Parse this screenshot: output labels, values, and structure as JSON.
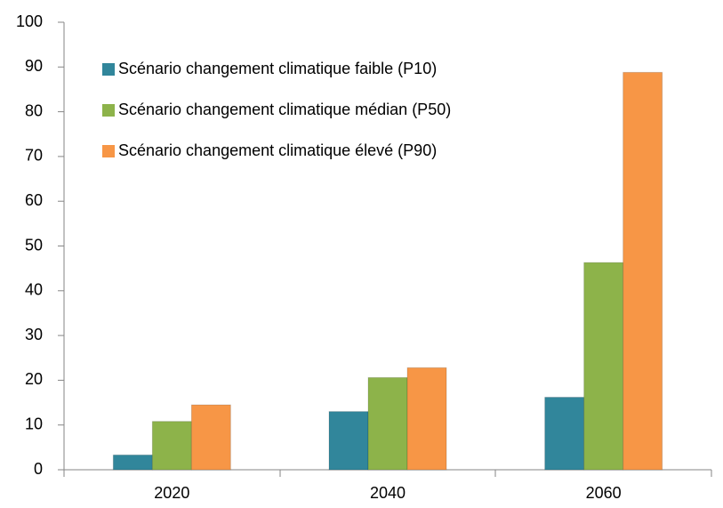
{
  "chart_data": {
    "type": "bar",
    "categories": [
      "2020",
      "2040",
      "2060"
    ],
    "series": [
      {
        "name": "Scénario changement climatique faible (P10)",
        "color": "#31869b",
        "values": [
          3.3,
          13,
          16.2
        ]
      },
      {
        "name": "Scénario changement climatique médian (P50)",
        "color": "#8db34a",
        "values": [
          10.8,
          20.6,
          46.3
        ]
      },
      {
        "name": "Scénario changement climatique élevé (P90)",
        "color": "#f79646",
        "values": [
          14.5,
          22.8,
          88.8
        ]
      }
    ],
    "ylim": [
      0,
      100
    ],
    "yticks": [
      0,
      10,
      20,
      30,
      40,
      50,
      60,
      70,
      80,
      90,
      100
    ],
    "grid": false,
    "legend": "upper-left"
  }
}
